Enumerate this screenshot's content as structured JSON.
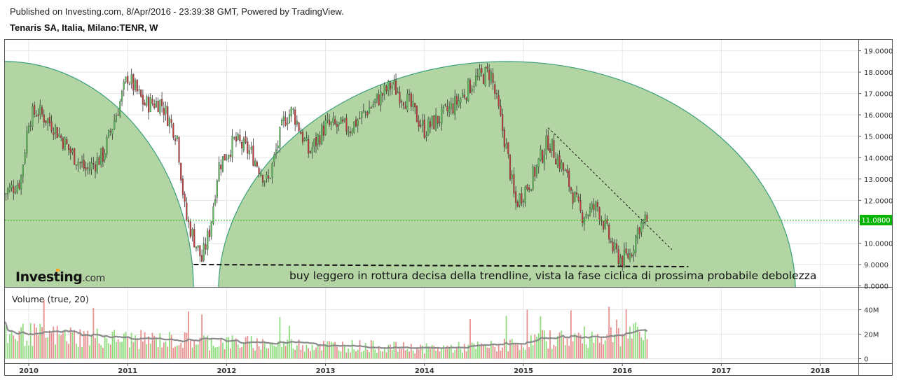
{
  "header": {
    "published": "Published on Investing.com, 8/Apr/2016 - 23:39:38 GMT, Powered by TradingView.",
    "symbol": "Tenaris SA, Italia, Milano:TENR, W"
  },
  "logo": {
    "brand": "Investing",
    "suffix": ".com"
  },
  "annotation_text": "buy leggero in rottura decisa della trendline, vista la fase ciclica di prossima probabile debolezza",
  "colors": {
    "up": "#5fbf5f",
    "down": "#c23b3b",
    "volume_up": "#8fdc7f",
    "volume_down": "#e69090",
    "cycle_fill": "#b3d4a3",
    "cycle_stroke": "#3aa07a",
    "last_price": "#00b400",
    "volume_ma": "#8a8a8a",
    "grid": "#e6e6e6"
  },
  "chart_data": [
    {
      "type": "candlestick",
      "title": "",
      "ylim": [
        8.0,
        19.2
      ],
      "x_ticks": [
        "2010",
        "2011",
        "2012",
        "2013",
        "2014",
        "2015",
        "2016",
        "2017",
        "2018"
      ],
      "y_ticks": [
        "8.0000",
        "9.0000",
        "10.0000",
        "11.0000",
        "12.0000",
        "13.0000",
        "14.0000",
        "15.0000",
        "16.0000",
        "17.0000",
        "18.0000",
        "19.0000"
      ],
      "last_price": 11.08,
      "last_price_label": "11.0800",
      "close_keypoints": [
        [
          "2009-10",
          12.3
        ],
        [
          "2009-12",
          12.9
        ],
        [
          "2010-01",
          15.8
        ],
        [
          "2010-02",
          16.2
        ],
        [
          "2010-04",
          15.5
        ],
        [
          "2010-06",
          14.3
        ],
        [
          "2010-08",
          13.4
        ],
        [
          "2010-10",
          14.1
        ],
        [
          "2010-12",
          16.5
        ],
        [
          "2011-01",
          17.8
        ],
        [
          "2011-03",
          16.5
        ],
        [
          "2011-05",
          16.6
        ],
        [
          "2011-07",
          15.0
        ],
        [
          "2011-08",
          11.3
        ],
        [
          "2011-10",
          9.2
        ],
        [
          "2011-11",
          10.7
        ],
        [
          "2011-12",
          13.6
        ],
        [
          "2012-02",
          14.8
        ],
        [
          "2012-04",
          14.2
        ],
        [
          "2012-06",
          12.8
        ],
        [
          "2012-08",
          15.8
        ],
        [
          "2012-09",
          16.2
        ],
        [
          "2012-11",
          14.2
        ],
        [
          "2013-01",
          15.5
        ],
        [
          "2013-04",
          15.4
        ],
        [
          "2013-06",
          16.2
        ],
        [
          "2013-08",
          17.0
        ],
        [
          "2013-09",
          17.4
        ],
        [
          "2013-11",
          16.6
        ],
        [
          "2014-01",
          15.3
        ],
        [
          "2014-03",
          15.9
        ],
        [
          "2014-05",
          16.6
        ],
        [
          "2014-07",
          17.6
        ],
        [
          "2014-09",
          18.0
        ],
        [
          "2014-11",
          14.3
        ],
        [
          "2014-12",
          11.8
        ],
        [
          "2015-02",
          13.0
        ],
        [
          "2015-04",
          14.8
        ],
        [
          "2015-06",
          13.3
        ],
        [
          "2015-08",
          11.3
        ],
        [
          "2015-10",
          11.7
        ],
        [
          "2015-12",
          9.6
        ],
        [
          "2016-01",
          9.2
        ],
        [
          "2016-02",
          9.5
        ],
        [
          "2016-03",
          10.8
        ],
        [
          "2016-04",
          11.08
        ]
      ],
      "trendline": [
        [
          "2015-04",
          15.4
        ],
        [
          "2016-07",
          9.7
        ]
      ],
      "support_line": [
        [
          "2011-09",
          9.0
        ],
        [
          "2016-09",
          8.9
        ]
      ],
      "cycles": [
        {
          "start": "2007-11",
          "end": "2011-09"
        },
        {
          "start": "2011-12",
          "end": "2017-10"
        }
      ]
    },
    {
      "type": "bar",
      "title": "Volume (true, 20)",
      "ylim": [
        0,
        50
      ],
      "y_ticks": [
        "0",
        "20M",
        "40M"
      ],
      "volume_keypoints": [
        [
          "2009-10",
          22
        ],
        [
          "2010-06",
          20
        ],
        [
          "2011-01",
          17
        ],
        [
          "2011-08",
          16
        ],
        [
          "2012-06",
          13
        ],
        [
          "2013-06",
          11
        ],
        [
          "2014-01",
          9
        ],
        [
          "2014-10",
          11
        ],
        [
          "2015-03",
          17
        ],
        [
          "2015-09",
          19
        ],
        [
          "2016-01",
          22
        ],
        [
          "2016-04",
          21
        ]
      ]
    }
  ]
}
